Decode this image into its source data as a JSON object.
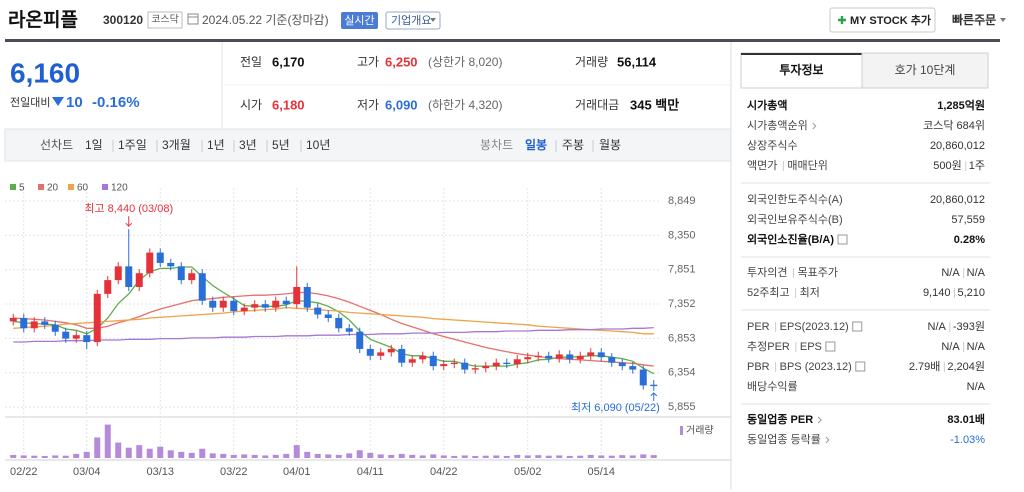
{
  "header": {
    "name": "라온피플",
    "code": "300120",
    "market": "코스닥",
    "date": "2024.05.22 기준(장마감)",
    "realtime": "실시간",
    "company_menu": "기업개요",
    "my_stock": "MY STOCK 추가",
    "quick_order": "빠른주문"
  },
  "quote": {
    "price": "6,160",
    "change_label": "전일대비",
    "change": "10",
    "change_rate": "-0.16%",
    "stats": [
      {
        "label": "전일",
        "value": "6,170"
      },
      {
        "label": "고가",
        "value": "6,250",
        "note": "(상한가 8,020)"
      },
      {
        "label": "거래량",
        "value": "56,114"
      },
      {
        "label": "시가",
        "value": "6,180"
      },
      {
        "label": "저가",
        "value": "6,090",
        "note": "(하한가 4,320)"
      },
      {
        "label": "거래대금",
        "value": "345 백만"
      }
    ]
  },
  "period_tabs": {
    "line_label": "선차트",
    "line_periods": [
      "1일",
      "1주일",
      "3개월",
      "1년",
      "3년",
      "5년",
      "10년"
    ],
    "candle_label": "봉차트",
    "candle_periods": [
      "일봉",
      "주봉",
      "월봉"
    ]
  },
  "chart_data": {
    "type": "candlestick",
    "categories": [
      null,
      "02/22",
      null,
      null,
      null,
      null,
      null,
      "03/04",
      null,
      null,
      null,
      null,
      null,
      null,
      "03/13",
      null,
      null,
      null,
      null,
      null,
      null,
      "03/22",
      null,
      null,
      null,
      null,
      null,
      "04/01",
      null,
      null,
      null,
      null,
      null,
      null,
      "04/11",
      null,
      null,
      null,
      null,
      null,
      null,
      "04/22",
      null,
      null,
      null,
      null,
      null,
      null,
      null,
      "05/02",
      null,
      null,
      null,
      null,
      null,
      null,
      "05/14",
      null,
      null,
      null,
      null,
      null
    ],
    "open": [
      7100,
      7150,
      7000,
      7100,
      7050,
      6950,
      6850,
      6900,
      6800,
      7500,
      7700,
      7900,
      7600,
      7800,
      8100,
      7950,
      7900,
      7700,
      7800,
      7400,
      7300,
      7400,
      7250,
      7300,
      7350,
      7300,
      7400,
      7350,
      7600,
      7300,
      7200,
      7150,
      7000,
      6950,
      6700,
      6600,
      6650,
      6700,
      6500,
      6550,
      6600,
      6450,
      6480,
      6500,
      6400,
      6420,
      6450,
      6500,
      6480,
      6550,
      6580,
      6600,
      6560,
      6620,
      6550,
      6600,
      6650,
      6580,
      6500,
      6450,
      6400,
      6180
    ],
    "high": [
      7210,
      7210,
      7160,
      7160,
      7110,
      7010,
      6960,
      6960,
      7560,
      7760,
      7960,
      8440,
      7860,
      8160,
      8160,
      8010,
      7960,
      7860,
      7860,
      7460,
      7460,
      7460,
      7360,
      7410,
      7410,
      7460,
      7460,
      7900,
      7660,
      7360,
      7260,
      7210,
      7060,
      7010,
      6760,
      6710,
      6760,
      6760,
      6610,
      6660,
      6660,
      6540,
      6560,
      6560,
      6480,
      6510,
      6560,
      6560,
      6610,
      6640,
      6660,
      6660,
      6680,
      6680,
      6660,
      6710,
      6710,
      6640,
      6560,
      6510,
      6460,
      6250
    ],
    "low": [
      7040,
      6940,
      6940,
      6990,
      6890,
      6790,
      6790,
      6700,
      6740,
      7440,
      7640,
      7540,
      7540,
      7740,
      7890,
      7840,
      7640,
      7640,
      7340,
      7240,
      7240,
      7190,
      7190,
      7240,
      7240,
      7240,
      7290,
      7290,
      7240,
      7140,
      7090,
      6940,
      6890,
      6640,
      6540,
      6540,
      6590,
      6440,
      6440,
      6490,
      6390,
      6390,
      6420,
      6340,
      6340,
      6360,
      6390,
      6420,
      6420,
      6490,
      6520,
      6500,
      6500,
      6490,
      6490,
      6540,
      6520,
      6440,
      6390,
      6340,
      6110,
      6090
    ],
    "close": [
      7150,
      7000,
      7100,
      7050,
      6950,
      6850,
      6900,
      6800,
      7500,
      7700,
      7900,
      7600,
      7800,
      8100,
      7950,
      7900,
      7700,
      7800,
      7400,
      7300,
      7400,
      7250,
      7300,
      7350,
      7300,
      7400,
      7350,
      7600,
      7300,
      7200,
      7150,
      7000,
      6950,
      6700,
      6600,
      6650,
      6700,
      6500,
      6550,
      6600,
      6450,
      6480,
      6500,
      6400,
      6420,
      6450,
      6500,
      6480,
      6550,
      6580,
      6600,
      6560,
      6620,
      6550,
      6600,
      6650,
      6580,
      6500,
      6450,
      6400,
      6170,
      6160
    ],
    "up_color": "#e5323a",
    "down_color": "#2a6ed8",
    "ylim": [
      5740,
      8980
    ],
    "yticks": [
      {
        "value": 5855,
        "label": "5,855"
      },
      {
        "value": 6354,
        "label": "6,354"
      },
      {
        "value": 6853,
        "label": "6,853"
      },
      {
        "value": 7352,
        "label": "7,352"
      },
      {
        "value": 7851,
        "label": "7,851"
      },
      {
        "value": 8350,
        "label": "8,350"
      },
      {
        "value": 8849,
        "label": "8,849"
      }
    ],
    "grid": true,
    "moving_averages": [
      {
        "name": "5",
        "color": "#5aaf4a",
        "values": [
          7100,
          7080,
          7070,
          7060,
          7050,
          6990,
          6970,
          6920,
          7000,
          7150,
          7360,
          7500,
          7700,
          7820,
          7870,
          7870,
          7890,
          7890,
          7750,
          7620,
          7520,
          7430,
          7330,
          7320,
          7320,
          7320,
          7340,
          7400,
          7390,
          7370,
          7320,
          7240,
          7120,
          6960,
          6840,
          6780,
          6720,
          6630,
          6600,
          6600,
          6560,
          6520,
          6520,
          6480,
          6450,
          6450,
          6450,
          6450,
          6480,
          6500,
          6540,
          6550,
          6580,
          6580,
          6590,
          6600,
          6600,
          6580,
          6560,
          6520,
          6420,
          6340
        ]
      },
      {
        "name": "20",
        "color": "#e8706a",
        "values": [
          7150,
          7140,
          7130,
          7120,
          7100,
          7080,
          7050,
          7000,
          7000,
          7030,
          7080,
          7120,
          7170,
          7230,
          7280,
          7320,
          7360,
          7400,
          7420,
          7430,
          7450,
          7460,
          7470,
          7480,
          7480,
          7490,
          7500,
          7520,
          7520,
          7500,
          7470,
          7430,
          7380,
          7320,
          7260,
          7200,
          7130,
          7070,
          7020,
          6970,
          6920,
          6880,
          6840,
          6800,
          6760,
          6720,
          6690,
          6660,
          6630,
          6610,
          6590,
          6570,
          6560,
          6550,
          6540,
          6530,
          6520,
          6510,
          6500,
          6490,
          6470,
          6450
        ]
      },
      {
        "name": "60",
        "color": "#f0a347",
        "values": [
          7000,
          7010,
          7020,
          7030,
          7040,
          7060,
          7070,
          7080,
          7090,
          7100,
          7110,
          7120,
          7130,
          7150,
          7160,
          7170,
          7180,
          7190,
          7200,
          7210,
          7220,
          7240,
          7250,
          7260,
          7270,
          7280,
          7300,
          7290,
          7280,
          7270,
          7260,
          7250,
          7230,
          7220,
          7210,
          7200,
          7190,
          7180,
          7170,
          7160,
          7140,
          7130,
          7120,
          7110,
          7100,
          7090,
          7080,
          7070,
          7060,
          7050,
          7030,
          7020,
          7010,
          7000,
          6990,
          6980,
          6970,
          6960,
          6950,
          6940,
          6920,
          6920
        ]
      },
      {
        "name": "120",
        "color": "#a677d6",
        "values": [
          6800,
          6800,
          6810,
          6810,
          6810,
          6820,
          6820,
          6820,
          6830,
          6830,
          6830,
          6840,
          6840,
          6840,
          6850,
          6850,
          6850,
          6860,
          6860,
          6860,
          6870,
          6870,
          6870,
          6880,
          6880,
          6880,
          6890,
          6890,
          6890,
          6900,
          6900,
          6900,
          6910,
          6910,
          6910,
          6920,
          6920,
          6920,
          6930,
          6930,
          6930,
          6940,
          6940,
          6940,
          6950,
          6950,
          6950,
          6960,
          6960,
          6960,
          6970,
          6970,
          6970,
          6980,
          6980,
          6980,
          6990,
          6990,
          6990,
          7000,
          7000,
          7010
        ]
      }
    ],
    "volume": {
      "name": "거래량",
      "color": "#b58ad8",
      "ylim": [
        0,
        700000
      ],
      "values": [
        60000,
        50000,
        45000,
        40000,
        50000,
        45000,
        80000,
        120000,
        400000,
        650000,
        300000,
        200000,
        250000,
        180000,
        220000,
        150000,
        120000,
        100000,
        180000,
        90000,
        80000,
        60000,
        70000,
        60000,
        50000,
        60000,
        80000,
        250000,
        120000,
        80000,
        70000,
        60000,
        90000,
        150000,
        100000,
        70000,
        60000,
        80000,
        60000,
        50000,
        70000,
        50000,
        40000,
        50000,
        40000,
        45000,
        50000,
        40000,
        60000,
        50000,
        55000,
        45000,
        50000,
        40000,
        45000,
        60000,
        50000,
        45000,
        55000,
        50000,
        70000,
        56114
      ]
    },
    "annotations": [
      {
        "text": "최고 8,440 (03/08)"
      },
      {
        "text": "최저 6,090 (05/22)"
      }
    ]
  },
  "invest_info": {
    "tabs": [
      "투자정보",
      "호가 10단계"
    ],
    "groups": [
      [
        {
          "labels": [
            "시가총액"
          ],
          "values": [
            "1,285억원"
          ]
        },
        {
          "labels": [
            "시가총액순위"
          ],
          "values": [
            "코스닥 684위"
          ]
        },
        {
          "labels": [
            "상장주식수"
          ],
          "values": [
            "20,860,012"
          ]
        },
        {
          "labels": [
            "액면가",
            "매매단위"
          ],
          "values": [
            "500원",
            "1주"
          ]
        }
      ],
      [
        {
          "labels": [
            "외국인한도주식수(A)"
          ],
          "values": [
            "20,860,012"
          ]
        },
        {
          "labels": [
            "외국인보유주식수(B)"
          ],
          "values": [
            "57,559"
          ]
        },
        {
          "labels": [
            "외국인소진율(B/A)"
          ],
          "values": [
            "0.28%"
          ]
        }
      ],
      [
        {
          "labels": [
            "투자의견",
            "목표주가"
          ],
          "values": [
            "N/A",
            "N/A"
          ]
        },
        {
          "labels": [
            "52주최고",
            "최저"
          ],
          "values": [
            "9,140",
            "5,210"
          ]
        }
      ],
      [
        {
          "labels": [
            "PER",
            "EPS(2023.12)"
          ],
          "values": [
            "N/A",
            "-393원"
          ]
        },
        {
          "labels": [
            "추정PER",
            "EPS"
          ],
          "values": [
            "N/A",
            "N/A"
          ]
        },
        {
          "labels": [
            "PBR",
            "BPS (2023.12)"
          ],
          "values": [
            "2.79배",
            "2,204원"
          ]
        },
        {
          "labels": [
            "배당수익률"
          ],
          "values": [
            "N/A"
          ]
        }
      ],
      [
        {
          "labels": [
            "동일업종 PER"
          ],
          "values": [
            "83.01배"
          ]
        },
        {
          "labels": [
            "동일업종 등락률"
          ],
          "values": [
            "-1.03%"
          ]
        }
      ]
    ]
  }
}
